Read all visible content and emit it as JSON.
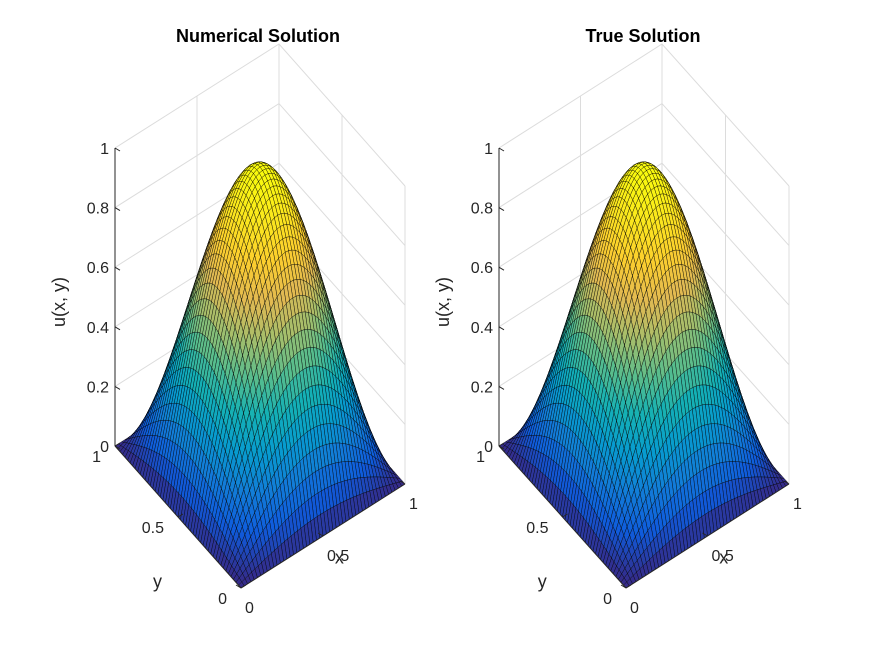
{
  "figure": {
    "background": "#ffffff",
    "colormap": "parula",
    "edge_color": "#000000"
  },
  "chart_data": [
    {
      "type": "surface",
      "title": "Numerical Solution",
      "function": "u(x, y) = sin(pi x) sin(pi y)",
      "xlabel": "x",
      "ylabel": "y",
      "zlabel": "u(x, y)",
      "xlim": [
        0,
        1
      ],
      "ylim": [
        0,
        1
      ],
      "zlim": [
        0,
        1
      ],
      "xticks": [
        "0",
        "0.5",
        "1"
      ],
      "yticks": [
        "0",
        "0.5",
        "1"
      ],
      "zticks": [
        "0",
        "0.2",
        "0.4",
        "0.6",
        "0.8",
        "1"
      ],
      "peak": {
        "x": 0.5,
        "y": 0.5,
        "z": 1
      },
      "grid": true
    },
    {
      "type": "surface",
      "title": "True Solution",
      "function": "u(x, y) = sin(pi x) sin(pi y)",
      "xlabel": "x",
      "ylabel": "y",
      "zlabel": "u(x, y)",
      "xlim": [
        0,
        1
      ],
      "ylim": [
        0,
        1
      ],
      "zlim": [
        0,
        1
      ],
      "xticks": [
        "0",
        "0.5",
        "1"
      ],
      "yticks": [
        "0",
        "0.5",
        "1"
      ],
      "zticks": [
        "0",
        "0.2",
        "0.4",
        "0.6",
        "0.8",
        "1"
      ],
      "peak": {
        "x": 0.5,
        "y": 0.5,
        "z": 1
      },
      "grid": true
    }
  ]
}
